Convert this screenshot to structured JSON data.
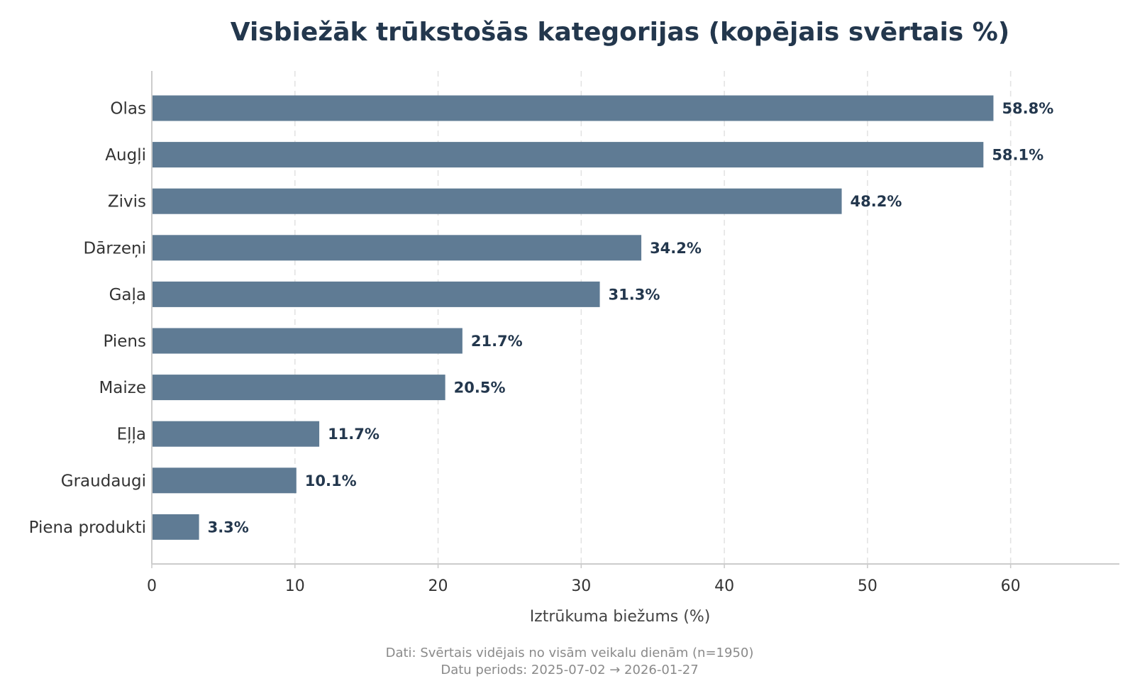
{
  "colors": {
    "bar": "#5f7b94",
    "title": "#23374d",
    "grid": "#e3e3e3",
    "axis": "#cccccc"
  },
  "chart_data": {
    "type": "bar",
    "orientation": "horizontal",
    "title": "Visbiežāk trūkstošās kategorijas (kopējais svērtais %)",
    "xlabel": "Iztrūkuma biežums (%)",
    "ylabel": "",
    "xlim": [
      0,
      67.6
    ],
    "xticks": [
      0,
      10,
      20,
      30,
      40,
      50,
      60
    ],
    "grid": "vertical-dashed",
    "categories": [
      "Olas",
      "Augļi",
      "Zivis",
      "Dārzeņi",
      "Gaļa",
      "Piens",
      "Maize",
      "Eļļa",
      "Graudaugi",
      "Piena produkti"
    ],
    "values": [
      58.8,
      58.1,
      48.2,
      34.2,
      31.3,
      21.7,
      20.5,
      11.7,
      10.1,
      3.3
    ],
    "value_labels": [
      "58.8%",
      "58.1%",
      "48.2%",
      "34.2%",
      "31.3%",
      "21.7%",
      "20.5%",
      "11.7%",
      "10.1%",
      "3.3%"
    ],
    "footnote": [
      "Dati: Svērtais vidējais no visām veikalu dienām (n=1950)",
      "Datu periods: 2025-07-02 → 2026-01-27"
    ]
  }
}
